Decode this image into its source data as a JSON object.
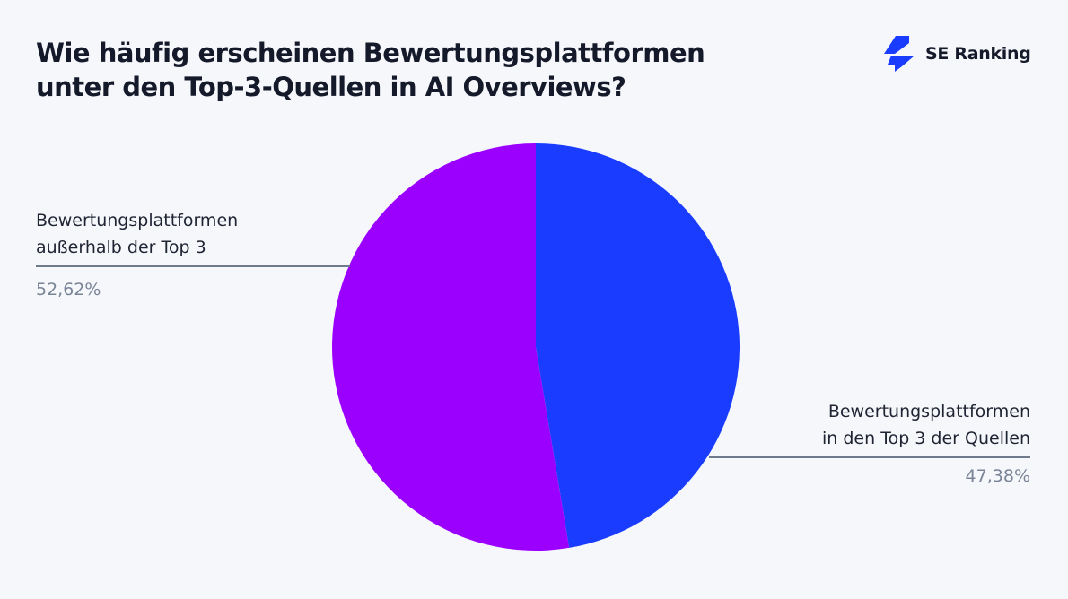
{
  "title_line1": "Wie häufig erscheinen Bewertungsplattformen",
  "title_line2": "unter den Top-3-Quellen in AI Overviews?",
  "logo": {
    "text": "SE Ranking",
    "icon": "se-ranking-bolt-icon",
    "color": "#1a3cff"
  },
  "chart_data": {
    "type": "pie",
    "title": "Wie häufig erscheinen Bewertungsplattformen unter den Top-3-Quellen in AI Overviews?",
    "slices": [
      {
        "label_line1": "Bewertungsplattformen",
        "label_line2": "in den Top 3 der Quellen",
        "value": 47.38,
        "value_label": "47,38%",
        "color": "#1a3cff"
      },
      {
        "label_line1": "Bewertungsplattformen",
        "label_line2": "außerhalb der Top 3",
        "value": 52.62,
        "value_label": "52,62%",
        "color": "#9b00ff"
      }
    ],
    "start_angle": "top, clockwise"
  }
}
